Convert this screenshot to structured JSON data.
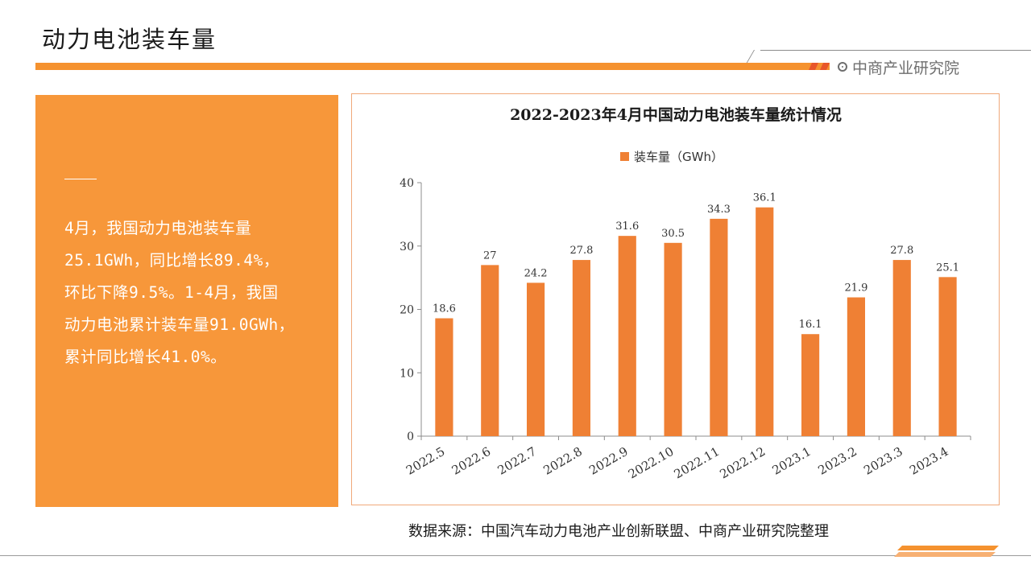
{
  "page": {
    "title": "动力电池装车量",
    "brand": "中商产业研究院",
    "accent_color": "#f5922f",
    "panel_color": "#f7973a",
    "bar_color": "#ef8034"
  },
  "summary": {
    "lines": [
      "4月，我国动力电池装车量",
      "25.1GWh，同比增长89.4%，",
      "环比下降9.5%。1-4月，我国",
      "动力电池累计装车量91.0GWh，",
      "累计同比增长41.0%。"
    ]
  },
  "chart_data": {
    "type": "bar",
    "title": "2022-2023年4月中国动力电池装车量统计情况",
    "legend": "装车量（GWh）",
    "legend_position": "top",
    "categories": [
      "2022.5",
      "2022.6",
      "2022.7",
      "2022.8",
      "2022.9",
      "2022.10",
      "2022.11",
      "2022.12",
      "2023.1",
      "2023.2",
      "2023.3",
      "2023.4"
    ],
    "series": [
      {
        "name": "装车量（GWh）",
        "values": [
          18.6,
          27,
          24.2,
          27.8,
          31.6,
          30.5,
          34.3,
          36.1,
          16.1,
          21.9,
          27.8,
          25.1
        ]
      }
    ],
    "data_labels": [
      "18.6",
      "27",
      "24.2",
      "27.8",
      "31.6",
      "30.5",
      "34.3",
      "36.1",
      "16.1",
      "21.9",
      "27.8",
      "25.1"
    ],
    "ylim": [
      0,
      40
    ],
    "yticks": [
      "0",
      "10",
      "20",
      "30",
      "40"
    ],
    "grid": false
  },
  "footer": {
    "source": "数据来源：中国汽车动力电池产业创新联盟、中商产业研究院整理"
  }
}
